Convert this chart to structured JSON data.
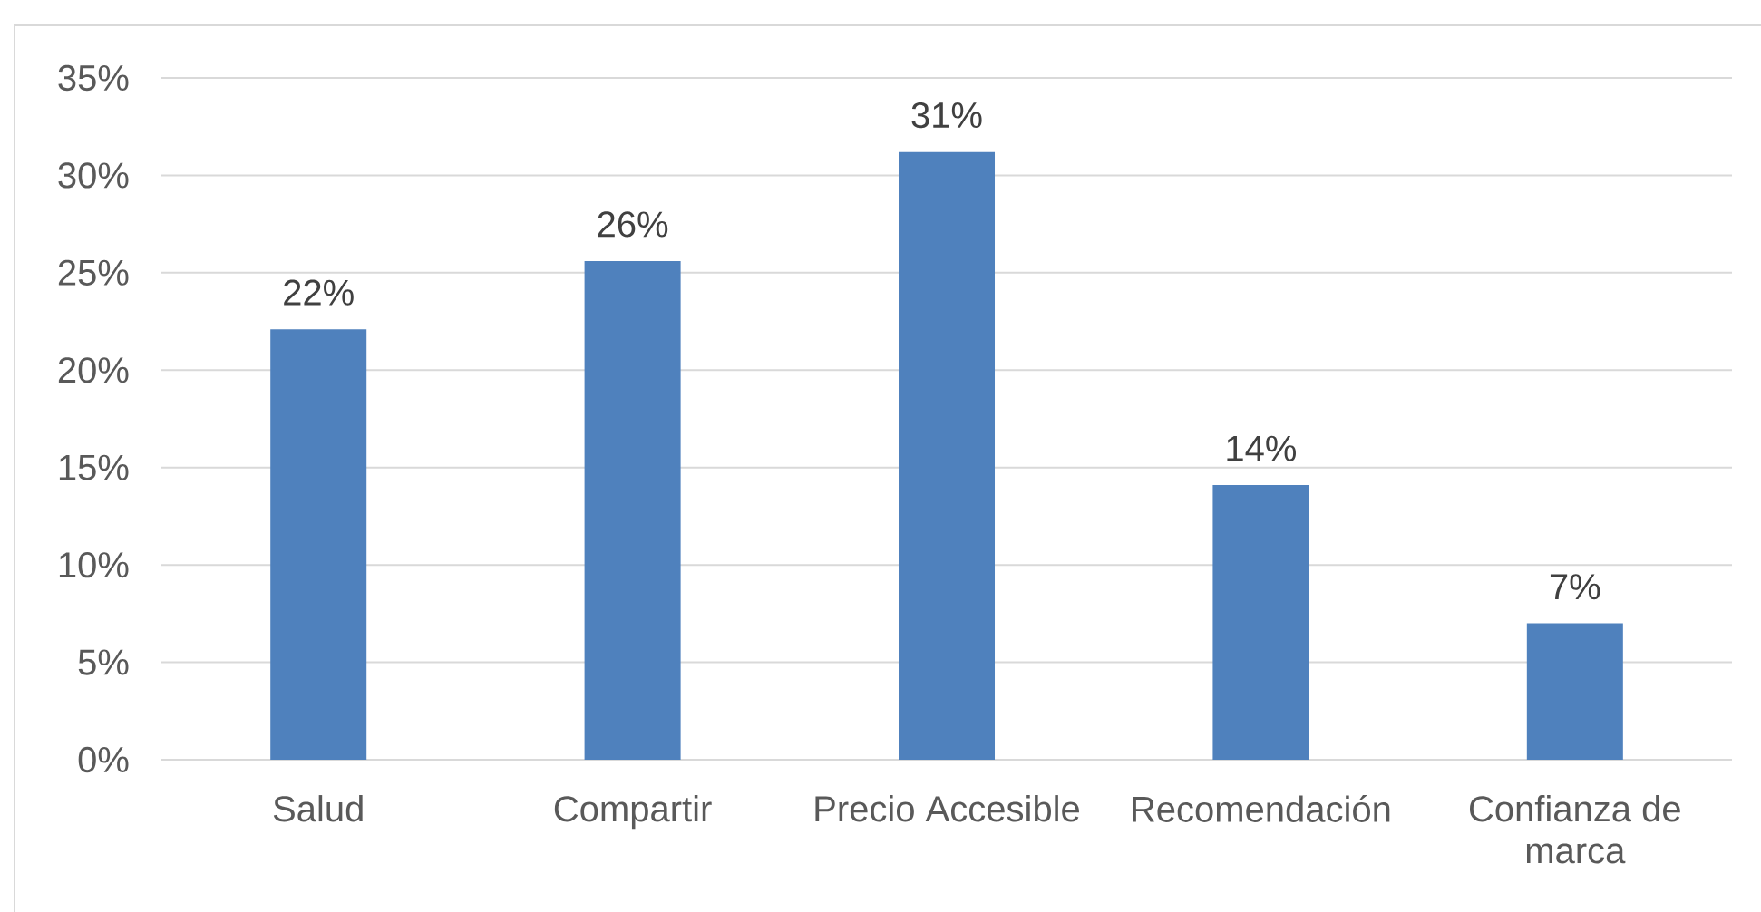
{
  "chart_data": {
    "type": "bar",
    "categories": [
      "Salud",
      "Compartir",
      "Precio Accesible",
      "Recomendación",
      "Confianza de marca"
    ],
    "values": [
      22.1,
      25.6,
      31.2,
      14.1,
      7.0
    ],
    "value_labels": [
      "22%",
      "26%",
      "31%",
      "14%",
      "7%"
    ],
    "color": "#4f81bd",
    "ylim": [
      0,
      35
    ],
    "yticks": [
      {
        "value": 0,
        "label": "0%"
      },
      {
        "value": 5,
        "label": "5%"
      },
      {
        "value": 10,
        "label": "10%"
      },
      {
        "value": 15,
        "label": "15%"
      },
      {
        "value": 20,
        "label": "20%"
      },
      {
        "value": 25,
        "label": "25%"
      },
      {
        "value": 30,
        "label": "30%"
      },
      {
        "value": 35,
        "label": "35%"
      }
    ],
    "grid": "y"
  }
}
